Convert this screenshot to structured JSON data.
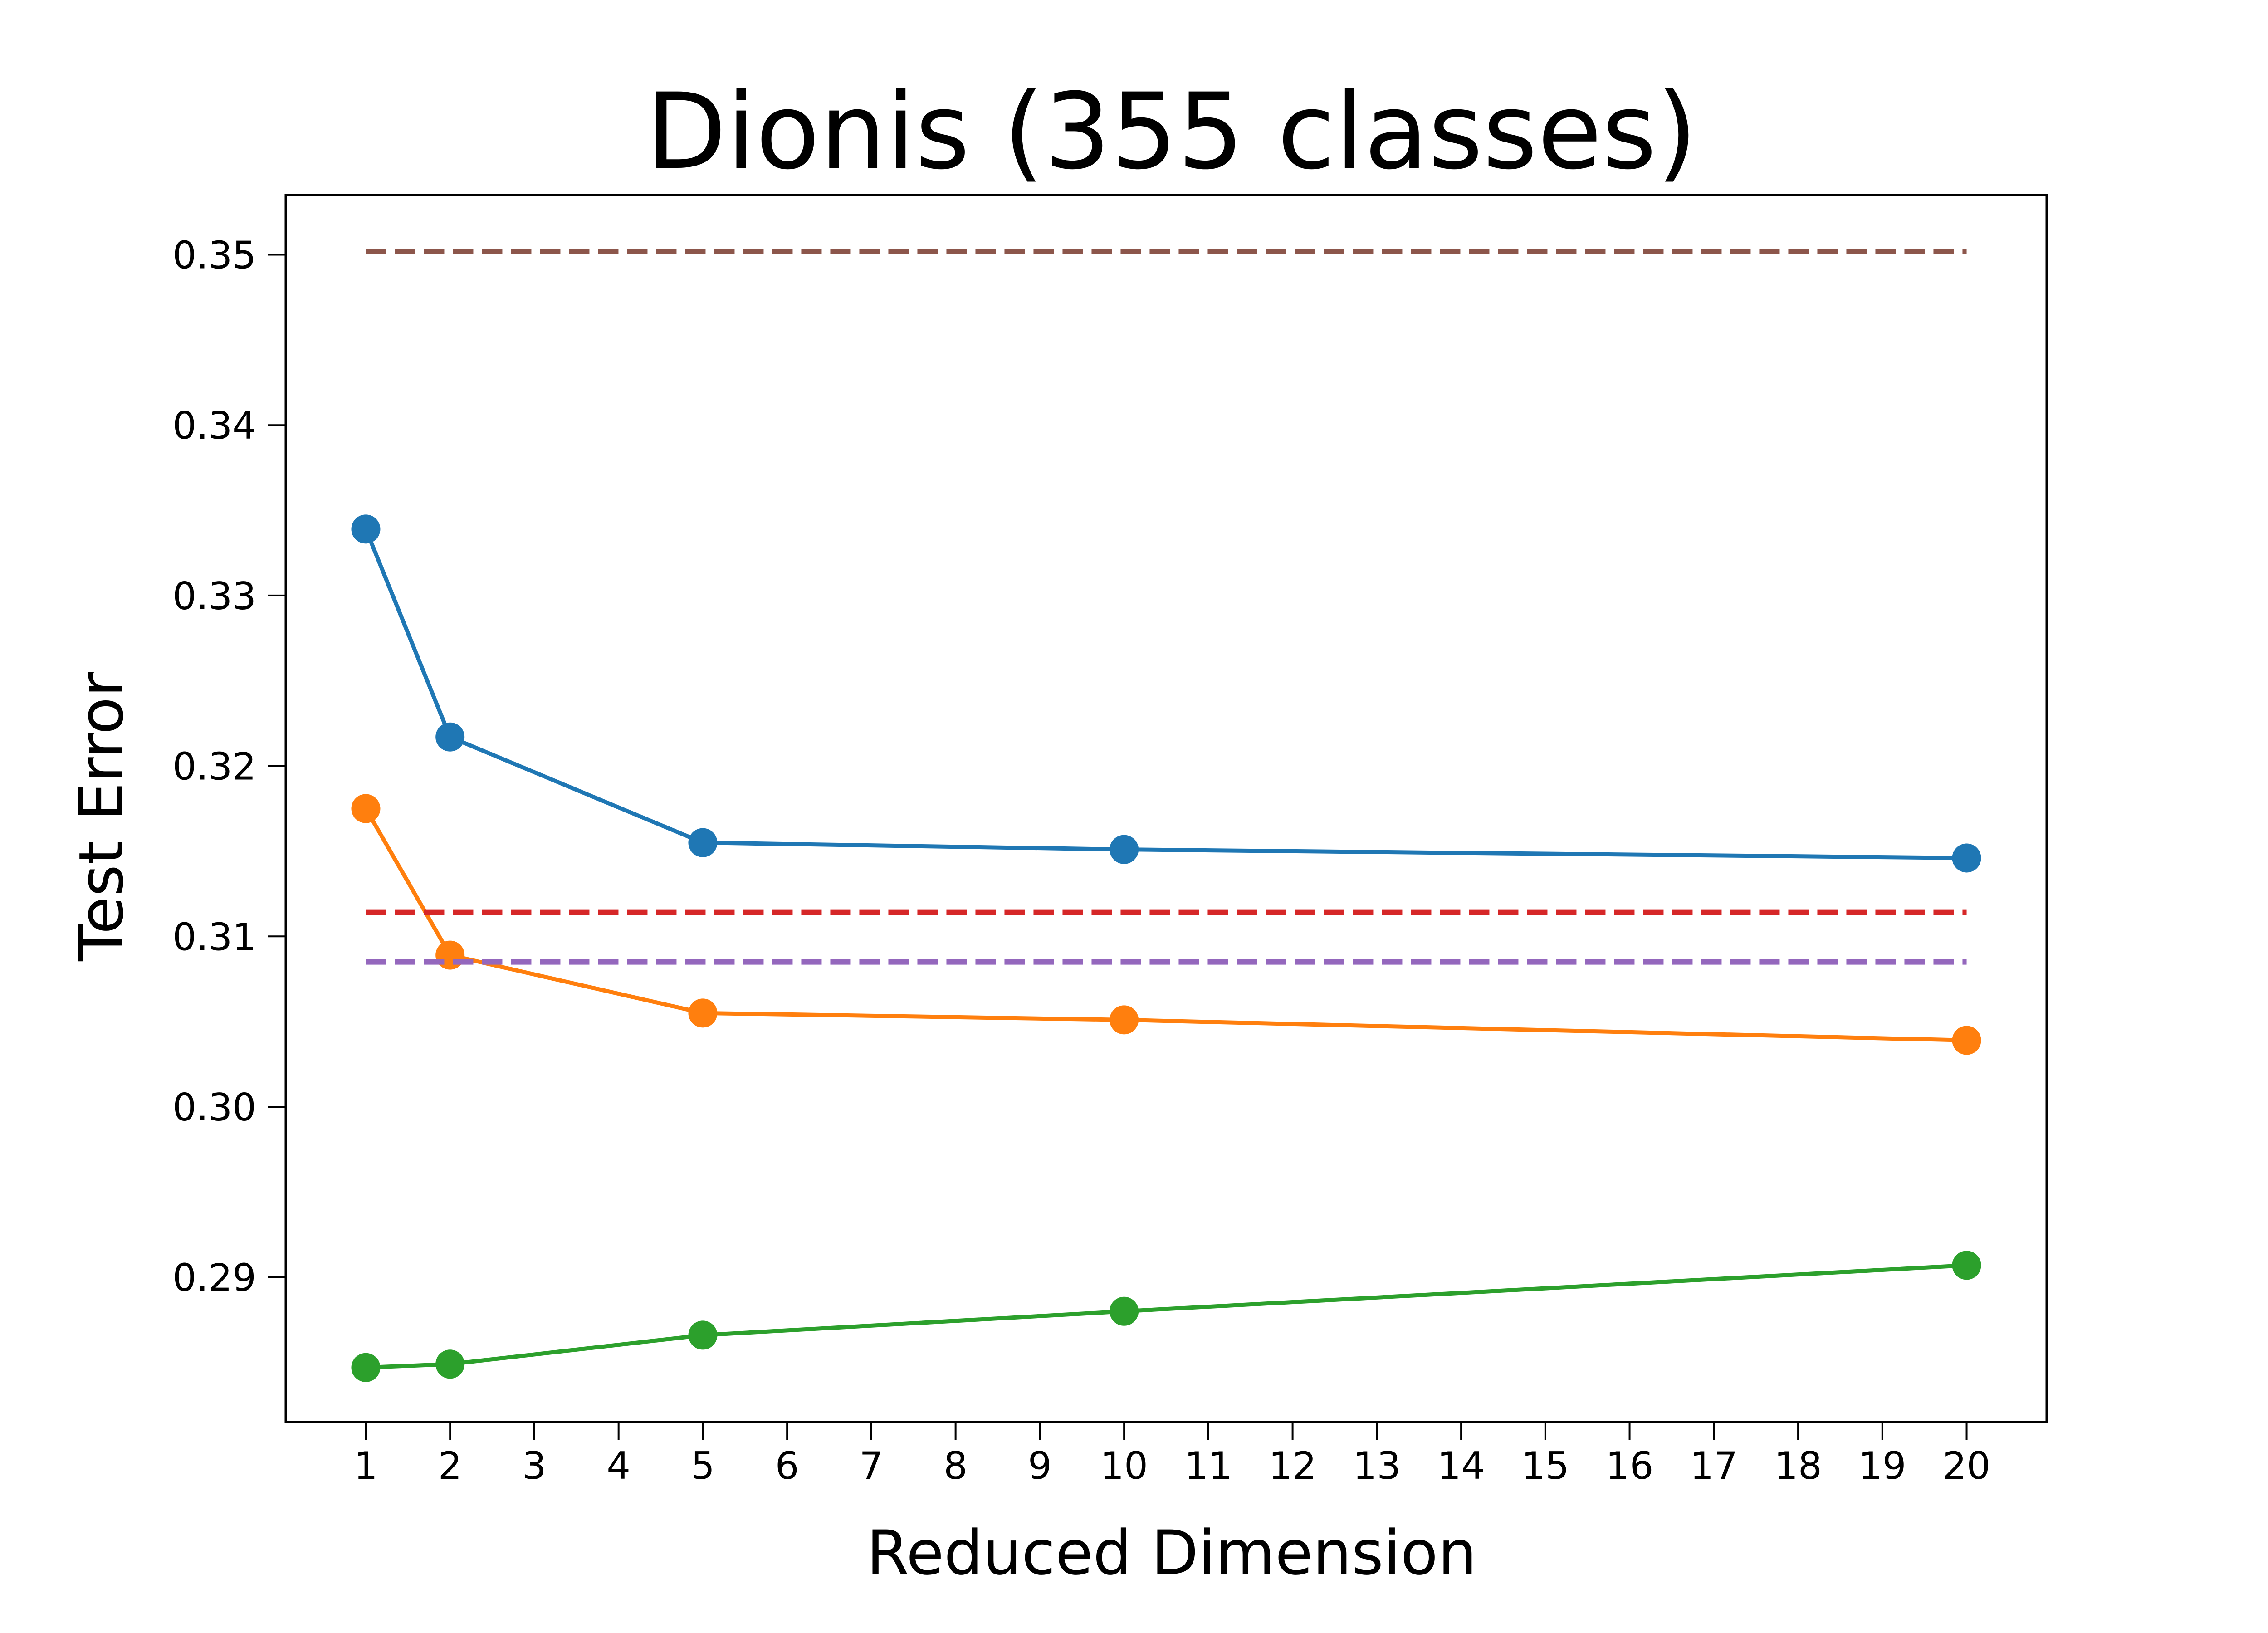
{
  "chart_data": {
    "type": "line",
    "title": "Dionis (355 classes)",
    "xlabel": "Reduced Dimension",
    "ylabel": "Test Error",
    "xlim": [
      0.05,
      20.95
    ],
    "ylim": [
      0.2815,
      0.3535
    ],
    "x_ticks": [
      1,
      2,
      3,
      4,
      5,
      6,
      7,
      8,
      9,
      10,
      11,
      12,
      13,
      14,
      15,
      16,
      17,
      18,
      19,
      20
    ],
    "x_tick_labels": [
      "1",
      "2",
      "3",
      "4",
      "5",
      "6",
      "7",
      "8",
      "9",
      "10",
      "11",
      "12",
      "13",
      "14",
      "15",
      "16",
      "17",
      "18",
      "19",
      "20"
    ],
    "y_ticks": [
      0.29,
      0.3,
      0.31,
      0.32,
      0.33,
      0.34,
      0.35
    ],
    "y_tick_labels": [
      "0.29",
      "0.30",
      "0.31",
      "0.32",
      "0.33",
      "0.34",
      "0.35"
    ],
    "grid": false,
    "legend": false,
    "series": [
      {
        "color": "#1f77b4",
        "style": "solid",
        "marker": "circle",
        "x": [
          1,
          2,
          5,
          10,
          20
        ],
        "y": [
          0.3339,
          0.3217,
          0.3155,
          0.3151,
          0.3146
        ]
      },
      {
        "color": "#ff7f0e",
        "style": "solid",
        "marker": "circle",
        "x": [
          1,
          2,
          5,
          10,
          20
        ],
        "y": [
          0.3175,
          0.3089,
          0.3055,
          0.3051,
          0.3039
        ]
      },
      {
        "color": "#2ca02c",
        "style": "solid",
        "marker": "circle",
        "x": [
          1,
          2,
          5,
          10,
          20
        ],
        "y": [
          0.2847,
          0.2849,
          0.2866,
          0.288,
          0.2907
        ]
      },
      {
        "color": "#d62728",
        "style": "dashed",
        "marker": "none",
        "x": [
          1,
          20
        ],
        "y": [
          0.3114,
          0.3114
        ]
      },
      {
        "color": "#9467bd",
        "style": "dashed",
        "marker": "none",
        "x": [
          1,
          20
        ],
        "y": [
          0.3085,
          0.3085
        ]
      },
      {
        "color": "#8c564b",
        "style": "dashed",
        "marker": "none",
        "x": [
          1,
          20
        ],
        "y": [
          0.3502,
          0.3502
        ]
      }
    ]
  }
}
